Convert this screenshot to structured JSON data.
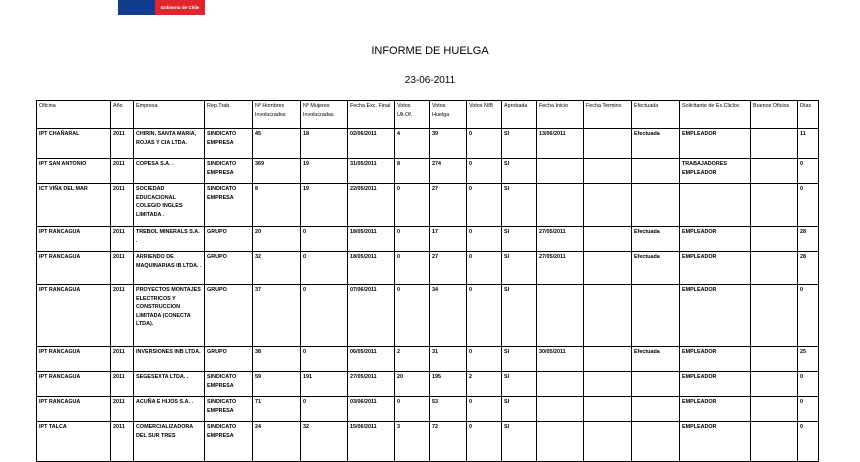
{
  "logo": {
    "text": "Gobierno de Chile",
    "colors": [
      "#0f3c8c",
      "#e0252f"
    ]
  },
  "report": {
    "title": "INFORME DE HUELGA",
    "date": "23-06-2011"
  },
  "table": {
    "headers": [
      "Oficina",
      "Año",
      "Empresa",
      "Rep.Trab.",
      "Nº Hombres Involucrados",
      "Nº Mujeres Involucradas",
      "Fecha Exc. Final",
      "Votos Ult.Of.",
      "Votos Huelga",
      "Votos N/B",
      "Aprobada",
      "Fecha Inicio",
      "Fecha Termino",
      "Efectuada",
      "Solicitante de Ex.Clicloc",
      "Buenos Oficios",
      "Días"
    ],
    "rows": [
      [
        "IPT CHAÑARAL",
        "2011",
        "CHIRIN, SANTA MARIA, ROJAS Y CIA LTDA.",
        "SINDICATO EMPRESA",
        "45",
        "18",
        "02/06/2011",
        "4",
        "39",
        "0",
        "SI",
        "13/06/2011",
        "",
        "Efectuada",
        "EMPLEADOR",
        "",
        "11"
      ],
      [
        "IPT SAN ANTONIO",
        "2011",
        "COPESA S.A. .",
        "SINDICATO EMPRESA",
        "369",
        "19",
        "31/05/2011",
        "8",
        "274",
        "0",
        "SI",
        "",
        "",
        "",
        "TRABAJADORES EMPLEADOR",
        "",
        "0"
      ],
      [
        "ICT VIÑA DEL MAR",
        "2011",
        "SOCIEDAD EDUCACIONAL COLEGIO INGLES LIMITADA .",
        "SINDICATO EMPRESA",
        "8",
        "19",
        "22/05/2011",
        "0",
        "27",
        "0",
        "SI",
        "",
        "",
        "",
        "",
        "",
        "0"
      ],
      [
        "IPT RANCAGUA",
        "2011",
        "TREBOL MINERALS S.A. .",
        "GRUPO",
        "20",
        "0",
        "18/05/2011",
        "0",
        "17",
        "0",
        "SI",
        "27/05/2011",
        "",
        "Efectuada",
        "EMPLEADOR",
        "",
        "28"
      ],
      [
        "IPT RANCAGUA",
        "2011",
        "ARRIENDO DE MAQUINARIAS IB LTDA. .",
        "GRUPO",
        "32",
        "0",
        "18/05/2011",
        "0",
        "27",
        "0",
        "SI",
        "27/05/2011",
        "",
        "Efectuada",
        "EMPLEADOR",
        "",
        "28"
      ],
      [
        "IPT RANCAGUA",
        "2011",
        "PROYECTOS MONTAJES ELECTRICOS Y CONSTRUCCION LIMITADA (CONECTA LTDA).",
        "GRUPO",
        "37",
        "0",
        "07/06/2011",
        "0",
        "34",
        "0",
        "SI",
        "",
        "",
        "",
        "EMPLEADOR",
        "",
        "0"
      ],
      [
        "IPT RANCAGUA",
        "2011",
        "INVERSIONES INB LTDA.",
        "GRUPO",
        "38",
        "0",
        "06/05/2011",
        "2",
        "31",
        "0",
        "SI",
        "30/05/2011",
        "",
        "Efectuada",
        "EMPLEADOR",
        "",
        "25"
      ],
      [
        "IPT RANCAGUA",
        "2011",
        "SEGESEXTA LTDA. .",
        "SINDICATO EMPRESA",
        "59",
        "191",
        "27/05/2011",
        "20",
        "195",
        "2",
        "SI",
        "",
        "",
        "",
        "EMPLEADOR",
        "",
        "0"
      ],
      [
        "IPT RANCAGUA",
        "2011",
        "ACUÑA E HIJOS S.A. .",
        "SINDICATO EMPRESA",
        "71",
        "0",
        "03/06/2011",
        "0",
        "53",
        "0",
        "SI",
        "",
        "",
        "",
        "EMPLEADOR",
        "",
        "0"
      ],
      [
        "IPT TALCA",
        "2011",
        "COMERCIALIZADORA DEL SUR TRES",
        "SINDICATO EMPRESA",
        "24",
        "32",
        "15/06/2011",
        "3",
        "72",
        "0",
        "SI",
        "",
        "",
        "",
        "EMPLEADOR",
        "",
        "0"
      ]
    ]
  }
}
